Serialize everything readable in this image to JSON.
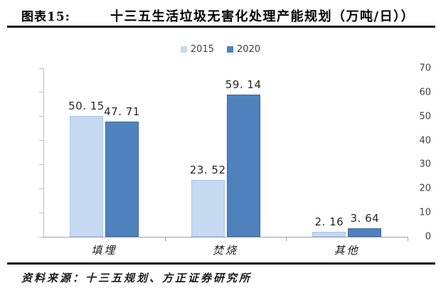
{
  "header": {
    "figure_label": "图表15:",
    "title": "十三五生活垃圾无害化处理产能规划（万吨/日））"
  },
  "chart_data": {
    "type": "bar",
    "title": "十三五生活垃圾无害化处理产能规划（万吨/日）",
    "categories": [
      "填埋",
      "焚烧",
      "其他"
    ],
    "series": [
      {
        "name": "2015",
        "color": "#c5d9f1",
        "border_color": "#aac6e8",
        "values": [
          50.15,
          23.52,
          2.16
        ],
        "value_labels": [
          "50. 15",
          "23. 52",
          "2. 16"
        ]
      },
      {
        "name": "2020",
        "color": "#4f81bd",
        "border_color": "#3c689c",
        "values": [
          47.71,
          59.14,
          3.64
        ],
        "value_labels": [
          "47. 71",
          "59. 14",
          "3. 64"
        ]
      }
    ],
    "xlabel": "",
    "ylabel": "",
    "ylim": [
      0,
      70
    ],
    "yticks": [
      0,
      10,
      20,
      30,
      40,
      50,
      60,
      70
    ],
    "legend_position": "top-center",
    "grid": false
  },
  "footer": {
    "source": "资料来源：十三五规划、方正证券研究所"
  }
}
